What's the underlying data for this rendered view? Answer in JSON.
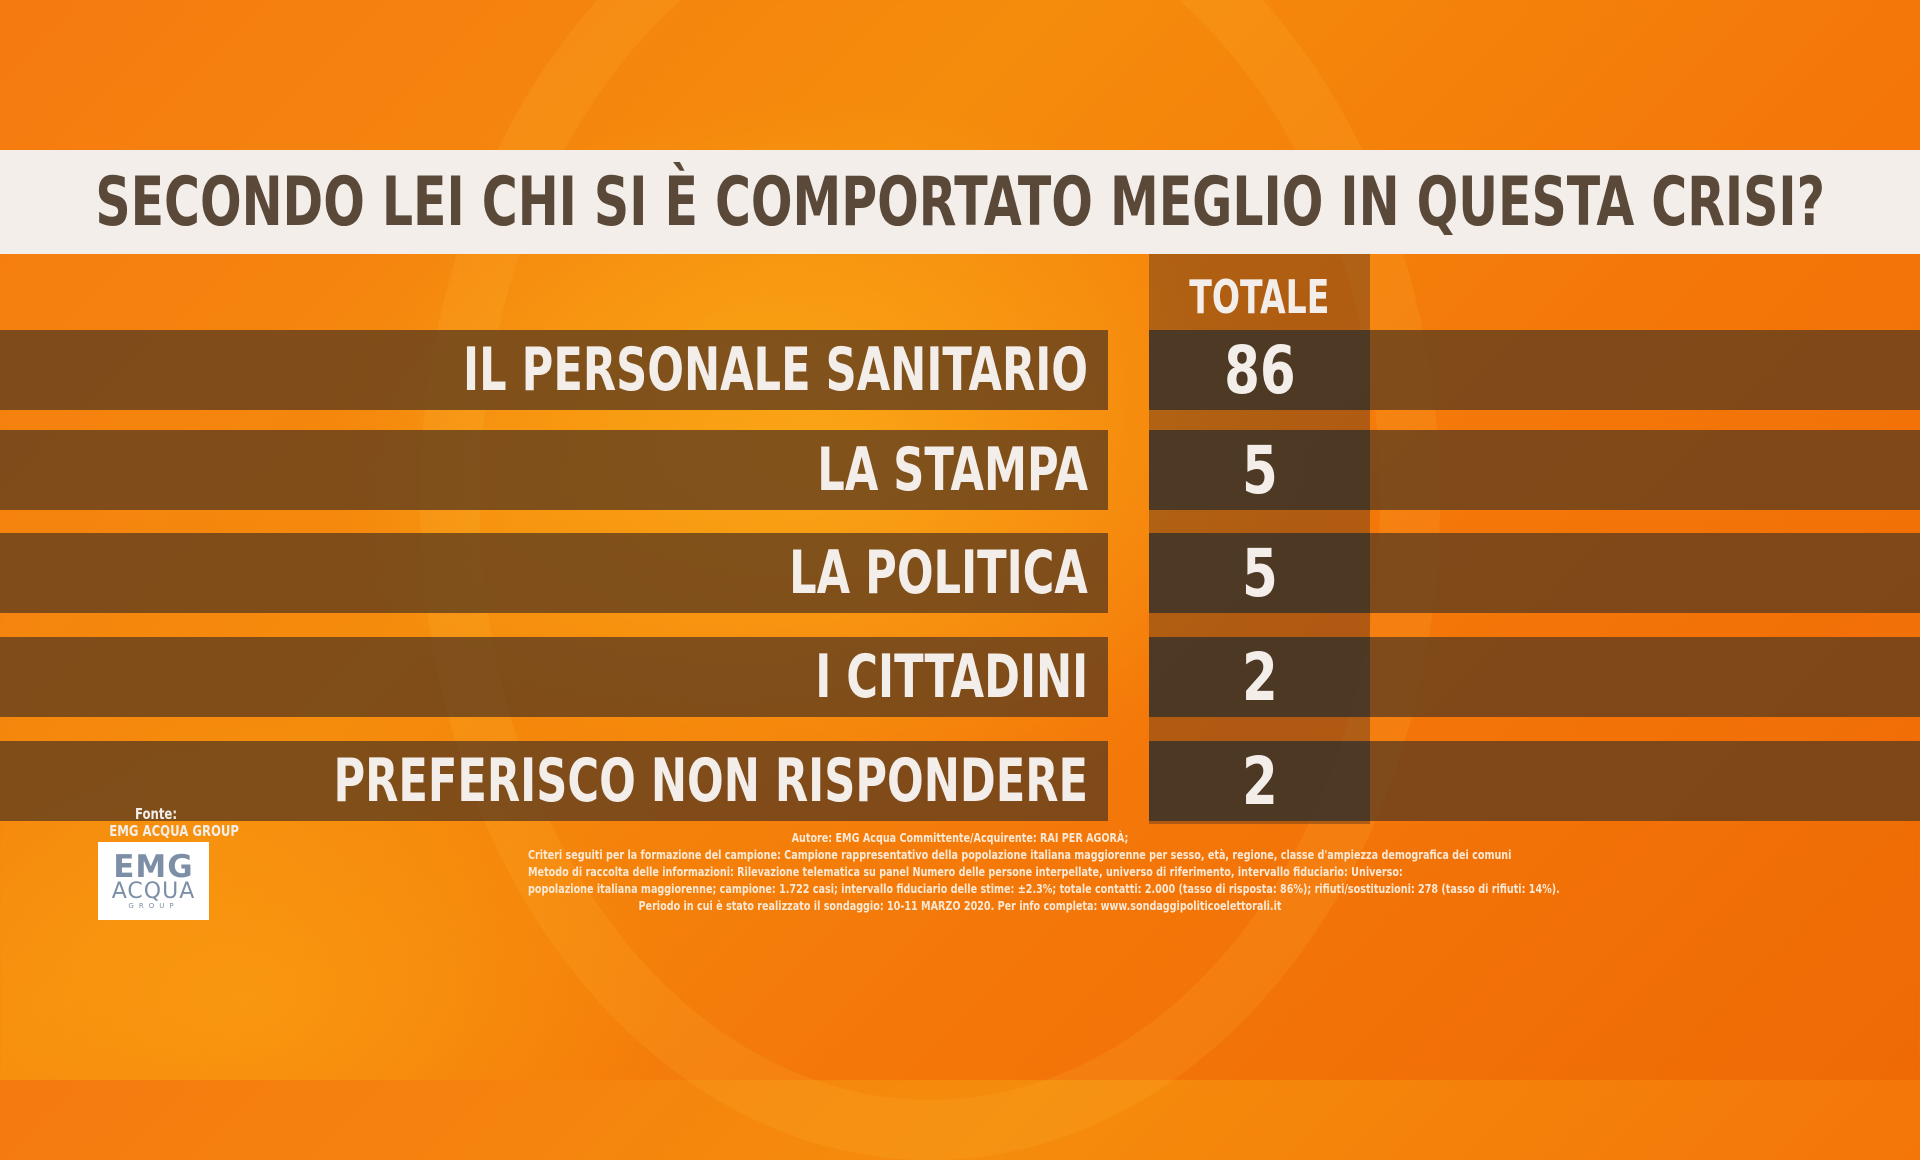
{
  "title": "SECONDO LEI CHI SI È COMPORTATO MEGLIO IN QUESTA CRISI?",
  "chart_data": {
    "type": "table",
    "title": "SECONDO LEI CHI SI È COMPORTATO MEGLIO IN QUESTA CRISI?",
    "column_header": "TOTALE",
    "categories": [
      "IL PERSONALE SANITARIO",
      "LA STAMPA",
      "LA POLITICA",
      "I CITTADINI",
      "PREFERISCO NON RISPONDERE"
    ],
    "series": [
      {
        "name": "TOTALE",
        "values": [
          86,
          5,
          5,
          2,
          2
        ]
      }
    ]
  },
  "rows": [
    {
      "label": "IL PERSONALE SANITARIO",
      "value": "86"
    },
    {
      "label": "LA STAMPA",
      "value": "5"
    },
    {
      "label": "LA POLITICA",
      "value": "5"
    },
    {
      "label": "I CITTADINI",
      "value": "2"
    },
    {
      "label": "PREFERISCO NON RISPONDERE",
      "value": "2"
    }
  ],
  "source": {
    "fonte_label": "Fonte:",
    "fonte_name": "EMG ACQUA GROUP",
    "logo_top": "EMG",
    "logo_mid": "ACQUA",
    "logo_bot": "GROUP"
  },
  "notes": [
    "Autore: EMG Acqua Committente/Acquirente: RAI PER AGORÀ;",
    "Criteri seguiti per la formazione del campione: Campione rappresentativo della popolazione italiana maggiorenne per sesso, età, regione, classe d'ampiezza demografica dei comuni",
    "Metodo di raccolta delle informazioni: Rilevazione telematica su panel Numero delle persone interpellate, universo di riferimento, intervallo fiduciario: Universo:",
    "popolazione italiana maggiorenne; campione: 1.722 casi; intervallo fiduciario delle stime: ±2.3%; totale contatti: 2.000 (tasso di risposta: 86%); rifiuti/sostituzioni: 278 (tasso di rifiuti: 14%).",
    "Periodo in cui è stato realizzato il sondaggio: 10-11 MARZO 2020. Per info completa: www.sondaggipoliticoelettorali.it"
  ],
  "colors": {
    "background": "#f58c0c",
    "title_band": "#f3eee9",
    "title_text": "#5a4838",
    "row_band": "#5f3c1e",
    "value_cell": "#3c3228",
    "text_light": "#f3eee9"
  }
}
